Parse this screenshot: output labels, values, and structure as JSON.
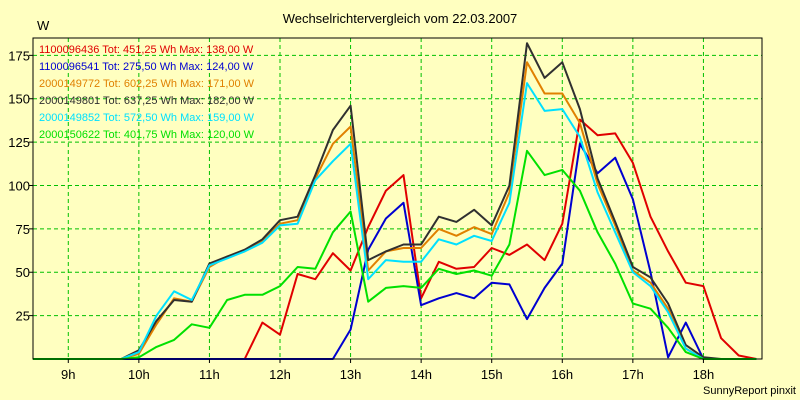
{
  "chart_data": {
    "type": "line",
    "title": "Wechselrichtervergleich vom 22.03.2007",
    "ylabel": "W",
    "xlabel": "",
    "credit": "SunnyReport pinxit",
    "ylim": [
      0,
      185
    ],
    "yticks": [
      25,
      50,
      75,
      100,
      125,
      150,
      175
    ],
    "xlim": [
      8.5,
      18.83
    ],
    "xticks": [
      {
        "value": 9,
        "label": "9h"
      },
      {
        "value": 10,
        "label": "10h"
      },
      {
        "value": 11,
        "label": "11h"
      },
      {
        "value": 12,
        "label": "12h"
      },
      {
        "value": 13,
        "label": "13h"
      },
      {
        "value": 14,
        "label": "14h"
      },
      {
        "value": 15,
        "label": "15h"
      },
      {
        "value": 16,
        "label": "16h"
      },
      {
        "value": 17,
        "label": "17h"
      },
      {
        "value": 18,
        "label": "18h"
      }
    ],
    "grid": true,
    "legend_position": "top-left",
    "x": [
      8.5,
      8.75,
      9,
      9.25,
      9.5,
      9.75,
      10,
      10.25,
      10.5,
      10.75,
      11,
      11.25,
      11.5,
      11.75,
      12,
      12.25,
      12.5,
      12.75,
      13,
      13.25,
      13.5,
      13.75,
      14,
      14.25,
      14.5,
      14.75,
      15,
      15.25,
      15.5,
      15.75,
      16,
      16.25,
      16.5,
      16.75,
      17,
      17.25,
      17.5,
      17.75,
      18,
      18.25,
      18.5,
      18.75
    ],
    "series": [
      {
        "name": "1100096436 Tot: 451,25 Wh Max: 138,00 W",
        "color": "#e00000",
        "values": [
          0,
          0,
          0,
          0,
          0,
          0,
          0,
          0,
          0,
          0,
          0,
          0,
          0,
          21,
          14,
          49,
          46,
          61,
          51,
          76,
          97,
          106,
          35,
          56,
          52,
          53,
          64,
          60,
          66,
          57,
          78,
          138,
          129,
          130,
          113,
          82,
          62,
          44,
          42,
          12,
          2,
          0
        ]
      },
      {
        "name": "1100096541 Tot: 275,50 Wh Max: 124,00 W",
        "color": "#0000d0",
        "values": [
          0,
          0,
          0,
          0,
          0,
          0,
          0,
          0,
          0,
          0,
          0,
          0,
          0,
          0,
          0,
          0,
          0,
          0,
          17,
          63,
          81,
          90,
          31,
          35,
          38,
          35,
          44,
          43,
          23,
          41,
          55,
          124,
          107,
          116,
          92,
          50,
          1,
          21,
          0,
          0,
          0,
          0
        ]
      },
      {
        "name": "2000149772 Tot: 602,25 Wh Max: 171,00 W",
        "color": "#e08000",
        "values": [
          0,
          0,
          0,
          0,
          0,
          0,
          3,
          20,
          35,
          33,
          53,
          59,
          62,
          68,
          78,
          80,
          104,
          124,
          134,
          51,
          62,
          64,
          64,
          75,
          71,
          76,
          72,
          96,
          171,
          153,
          153,
          136,
          101,
          77,
          51,
          44,
          29,
          6,
          0,
          0,
          0,
          0
        ]
      },
      {
        "name": "2000149801 Tot: 637,25 Wh Max: 182,00 W",
        "color": "#303030",
        "values": [
          0,
          0,
          0,
          0,
          0,
          0,
          5,
          22,
          34,
          33,
          55,
          59,
          63,
          69,
          80,
          82,
          106,
          132,
          146,
          57,
          62,
          66,
          66,
          82,
          79,
          86,
          77,
          100,
          182,
          162,
          171,
          144,
          104,
          79,
          53,
          47,
          32,
          8,
          1,
          0,
          0,
          0
        ]
      },
      {
        "name": "2000149852 Tot: 572,50 Wh Max: 159,00 W",
        "color": "#00e0ff",
        "values": [
          0,
          0,
          0,
          0,
          0,
          0,
          4,
          25,
          39,
          34,
          54,
          58,
          62,
          67,
          77,
          78,
          103,
          114,
          124,
          46,
          57,
          56,
          56,
          69,
          66,
          71,
          68,
          90,
          159,
          143,
          144,
          128,
          96,
          73,
          50,
          42,
          27,
          6,
          0,
          0,
          0,
          0
        ]
      },
      {
        "name": "2000150622 Tot: 401,75 Wh Max: 120,00 W",
        "color": "#00e000",
        "values": [
          0,
          0,
          0,
          0,
          0,
          0,
          1,
          7,
          11,
          20,
          18,
          34,
          37,
          37,
          42,
          53,
          52,
          73,
          85,
          33,
          41,
          42,
          41,
          52,
          49,
          51,
          48,
          66,
          120,
          106,
          109,
          97,
          73,
          55,
          32,
          29,
          18,
          4,
          0,
          0,
          0,
          0
        ]
      }
    ]
  }
}
